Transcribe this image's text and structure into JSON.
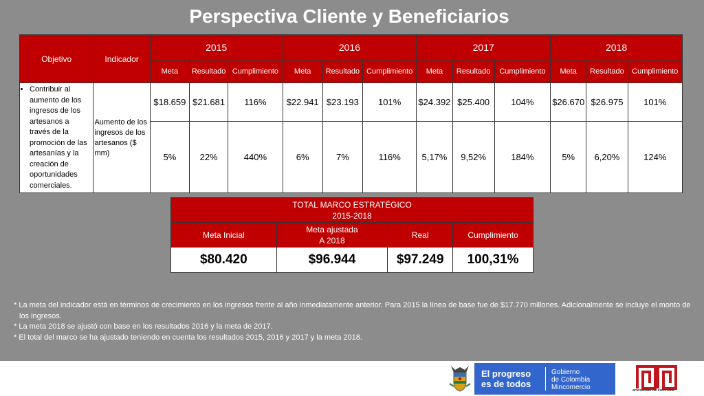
{
  "title": "Perspectiva Cliente y Beneficiarios",
  "main_table": {
    "objective_header": "Objetivo",
    "indicator_header": "Indicador",
    "years": [
      "2015",
      "2016",
      "2017",
      "2018"
    ],
    "subheaders": [
      "Meta",
      "Resultado",
      "Cumplimiento"
    ],
    "objective_text": "Contribuir al aumento de los ingresos de los artesanos a través de la promoción de las artesanías y la creación de oportunidades comerciales.",
    "indicator_text": "Aumento de los ingresos de los artesanos ($ mm)",
    "rows": [
      [
        "$18.659",
        "$21.681",
        "116%",
        "$22.941",
        "$23.193",
        "101%",
        "$24.392",
        "$25.400",
        "104%",
        "$26.670",
        "$26.975",
        "101%"
      ],
      [
        "5%",
        "22%",
        "440%",
        "6%",
        "7%",
        "116%",
        "5,17%",
        "9,52%",
        "184%",
        "5%",
        "6,20%",
        "124%"
      ]
    ]
  },
  "total_table": {
    "title_line1": "TOTAL MARCO ESTRATÉGICO",
    "title_line2": "2015-2018",
    "headers": [
      "Meta Inicial",
      "Meta ajustada",
      "A 2018",
      "Real",
      "Cumplimiento"
    ],
    "values": [
      "$80.420",
      "$96.944",
      "$97.249",
      "100,31%"
    ]
  },
  "footnotes": [
    "* La meta del indicador está en términos de crecimiento en los ingresos frente al año inmediatamente anterior. Para 2015 la línea de base fue de $17.770 millones. Adicionalmente se incluye el  monto de los ingresos.",
    "* La meta 2018 se ajustó con base en los resultados 2016 y la meta de 2017.",
    "* El total del marco se ha ajustado teniendo en cuenta los resultados 2015, 2016 y 2017 y la meta 2018."
  ],
  "footer": {
    "slogan_line1": "El progreso",
    "slogan_line2": "es de todos",
    "gov_line1": "Gobierno",
    "gov_line2": "de Colombia",
    "gov_line3": "Mincomercio",
    "brand_caption": "artesanías de colombia"
  },
  "colors": {
    "header_red": "#c00000",
    "background_gray": "#8c8c8c",
    "gov_blue": "#3366cc",
    "brand_red": "#c0161e"
  },
  "icons": [
    "colombia-coat-of-arms-icon",
    "artesanias-de-colombia-logo"
  ]
}
